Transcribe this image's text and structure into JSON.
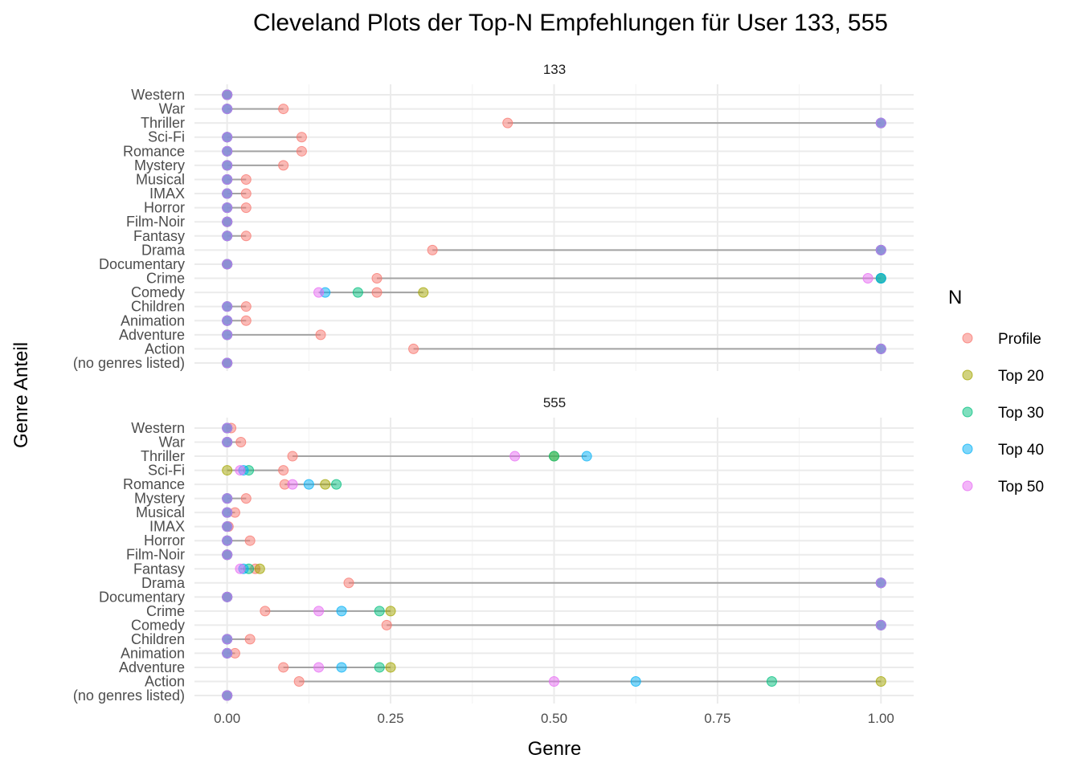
{
  "chart_data": {
    "type": "scatter",
    "title": "Cleveland Plots der Top-N Empfehlungen für User 133, 555",
    "xlabel": "Genre",
    "ylabel": "Genre Anteil",
    "xlim": [
      -0.05,
      1.05
    ],
    "x_ticks": [
      "0.00",
      "0.25",
      "0.50",
      "0.75",
      "1.00"
    ],
    "x_tick_values": [
      0,
      0.25,
      0.5,
      0.75,
      1.0
    ],
    "grid": true,
    "categories": [
      "(no genres listed)",
      "Action",
      "Adventure",
      "Animation",
      "Children",
      "Comedy",
      "Crime",
      "Documentary",
      "Drama",
      "Fantasy",
      "Film-Noir",
      "Horror",
      "IMAX",
      "Musical",
      "Mystery",
      "Romance",
      "Sci-Fi",
      "Thriller",
      "War",
      "Western"
    ],
    "legend": {
      "title": "N",
      "position": "right",
      "entries": [
        {
          "name": "Profile",
          "color": "#F8766D"
        },
        {
          "name": "Top 20",
          "color": "#A3A500"
        },
        {
          "name": "Top 30",
          "color": "#00BF7D"
        },
        {
          "name": "Top 40",
          "color": "#00B0F6"
        },
        {
          "name": "Top 50",
          "color": "#E76BF3"
        }
      ]
    },
    "overlap_color": "#8B67D6",
    "panels": [
      {
        "label": "133",
        "series": [
          {
            "name": "Profile",
            "values": [
              0,
              0.285,
              0.143,
              0.029,
              0.029,
              0.229,
              0.229,
              0,
              0.314,
              0.029,
              0,
              0.029,
              0.029,
              0.029,
              0.086,
              0.114,
              0.114,
              0.429,
              0.086,
              0
            ]
          },
          {
            "name": "Top 20",
            "values": [
              0,
              1.0,
              0,
              0,
              0,
              0.3,
              1.0,
              0,
              1.0,
              0,
              0,
              0,
              0,
              0,
              0,
              0,
              0,
              1.0,
              0,
              0
            ]
          },
          {
            "name": "Top 30",
            "values": [
              0,
              1.0,
              0,
              0,
              0,
              0.2,
              1.0,
              0,
              1.0,
              0,
              0,
              0,
              0,
              0,
              0,
              0,
              0,
              1.0,
              0,
              0
            ]
          },
          {
            "name": "Top 40",
            "values": [
              0,
              1.0,
              0,
              0,
              0,
              0.15,
              1.0,
              0,
              1.0,
              0,
              0,
              0,
              0,
              0,
              0,
              0,
              0,
              1.0,
              0,
              0
            ]
          },
          {
            "name": "Top 50",
            "values": [
              0,
              1.0,
              0,
              0,
              0,
              0.14,
              0.98,
              0,
              1.0,
              0,
              0,
              0,
              0,
              0,
              0,
              0,
              0,
              1.0,
              0,
              0
            ]
          }
        ]
      },
      {
        "label": "555",
        "series": [
          {
            "name": "Profile",
            "values": [
              0,
              0.11,
              0.086,
              0.012,
              0.035,
              0.244,
              0.058,
              0,
              0.186,
              0.043,
              0,
              0.035,
              0.002,
              0.012,
              0.029,
              0.088,
              0.086,
              0.1,
              0.021,
              0.006
            ]
          },
          {
            "name": "Top 20",
            "values": [
              0,
              1.0,
              0.25,
              0,
              0,
              1.0,
              0.25,
              0,
              1.0,
              0.05,
              0,
              0,
              0,
              0,
              0,
              0.15,
              0,
              0.5,
              0,
              0
            ]
          },
          {
            "name": "Top 30",
            "values": [
              0,
              0.833,
              0.233,
              0,
              0,
              1.0,
              0.233,
              0,
              1.0,
              0.033,
              0,
              0,
              0,
              0,
              0,
              0.167,
              0.033,
              0.5,
              0,
              0
            ]
          },
          {
            "name": "Top 40",
            "values": [
              0,
              0.625,
              0.175,
              0,
              0,
              1.0,
              0.175,
              0,
              1.0,
              0.025,
              0,
              0,
              0,
              0,
              0,
              0.125,
              0.025,
              0.55,
              0,
              0
            ]
          },
          {
            "name": "Top 50",
            "values": [
              0,
              0.5,
              0.14,
              0,
              0,
              1.0,
              0.14,
              0,
              1.0,
              0.02,
              0,
              0,
              0,
              0,
              0,
              0.1,
              0.02,
              0.44,
              0,
              0
            ]
          }
        ]
      }
    ]
  }
}
